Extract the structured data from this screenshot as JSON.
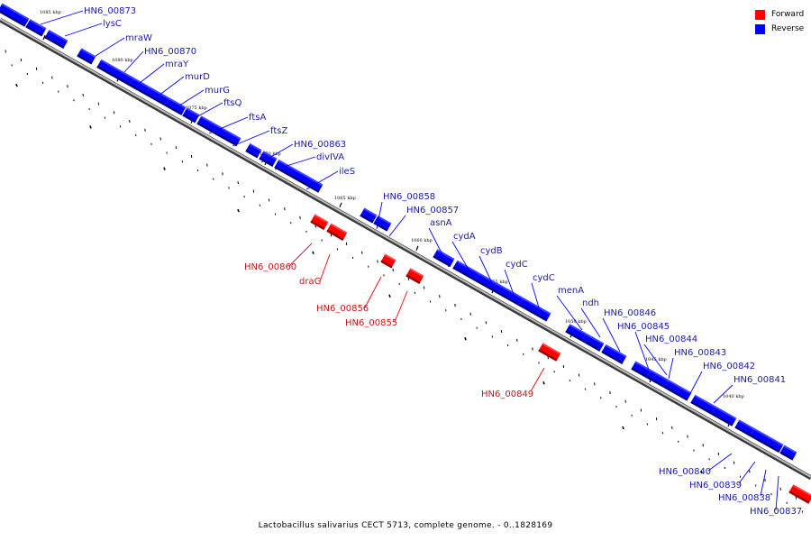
{
  "legend": [
    {
      "label": "Forward",
      "color": "#ff0000"
    },
    {
      "label": "Reverse",
      "color": "#0000ff"
    }
  ],
  "caption": "Lactobacillus salivarius CECT 5713, complete genome. - 0..1828169",
  "kbp_labels": [
    "1085 kbp",
    "1080 kbp",
    "1075 kbp",
    "1070 kbp",
    "1065 kbp",
    "1060 kbp",
    "1055 kbp",
    "1050 kbp",
    "1045 kbp",
    "1040 kbp"
  ],
  "reverse_genes": [
    "HN6_00873",
    "lysC",
    "mraW",
    "HN6_00870",
    "mraY",
    "murD",
    "murG",
    "ftsQ",
    "ftsA",
    "ftsZ",
    "HN6_00863",
    "divIVA",
    "ileS",
    "HN6_00858",
    "HN6_00857",
    "asnA",
    "cydA",
    "cydB",
    "cydC",
    "cydC",
    "menA",
    "ndh",
    "HN6_00846",
    "HN6_00845",
    "HN6_00844",
    "HN6_00843",
    "HN6_00842",
    "HN6_00841",
    "HN6_00840",
    "HN6_00839",
    "HN6_00838",
    "HN6_00837"
  ],
  "forward_genes": [
    "HN6_00860",
    "draG",
    "HN6_00856",
    "HN6_00855",
    "HN6_00849"
  ],
  "colors": {
    "reverse": "#0000ff",
    "forward": "#ff0000",
    "reverse_label": "#1a1aa8",
    "forward_label": "#c01818"
  }
}
